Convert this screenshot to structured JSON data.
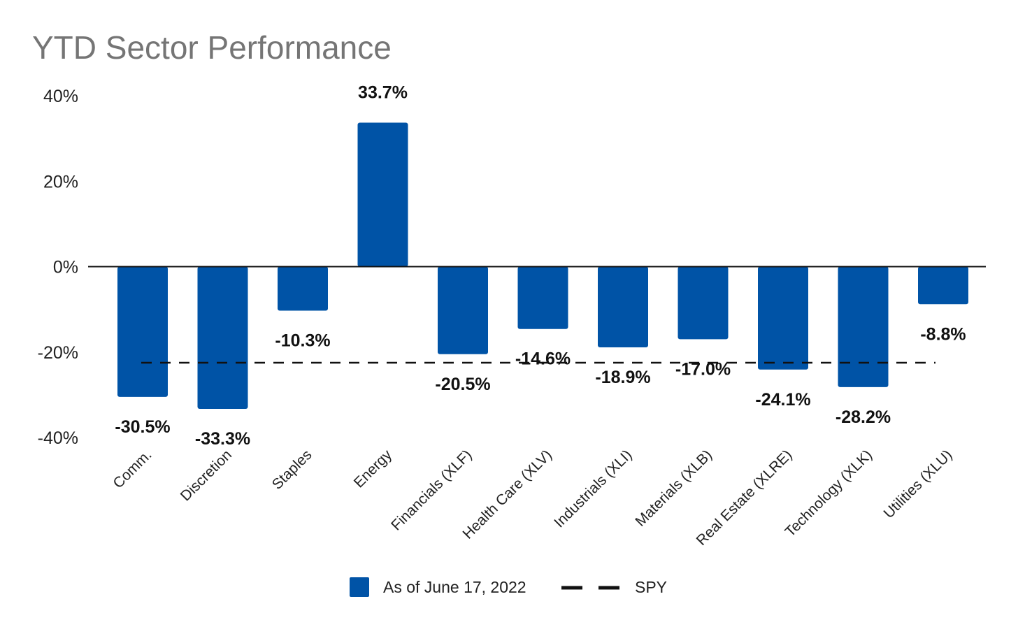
{
  "chart_data": {
    "type": "bar",
    "title": "YTD Sector Performance",
    "xlabel": "",
    "ylabel": "",
    "ylim": [
      -40,
      40
    ],
    "yticks": [
      40,
      20,
      0,
      -20,
      -40
    ],
    "ytick_labels": [
      "40%",
      "20%",
      "0%",
      "-20%",
      "-40%"
    ],
    "categories": [
      "Comm.",
      "Discretion",
      "Staples",
      "Energy",
      "Financials (XLF)",
      "Health Care (XLV)",
      "Industrials (XLI)",
      "Materials (XLB)",
      "Real Estate (XLRE)",
      "Technology (XLK)",
      "Utilities (XLU)"
    ],
    "series": [
      {
        "name": "As of June 17, 2022",
        "color": "#0053a6",
        "values": [
          -30.5,
          -33.3,
          -10.3,
          33.7,
          -20.5,
          -14.6,
          -18.9,
          -17.0,
          -24.1,
          -28.2,
          -8.8
        ],
        "labels": [
          "-30.5%",
          "-33.3%",
          "-10.3%",
          "33.7%",
          "-20.5%",
          "-14.6%",
          "-18.9%",
          "-17.0%",
          "-24.1%",
          "-28.2%",
          "-8.8%"
        ]
      }
    ],
    "reference_line": {
      "name": "SPY",
      "value": -22.5,
      "style": "dashed",
      "color": "#111111"
    },
    "grid": false,
    "legend_position": "bottom"
  }
}
